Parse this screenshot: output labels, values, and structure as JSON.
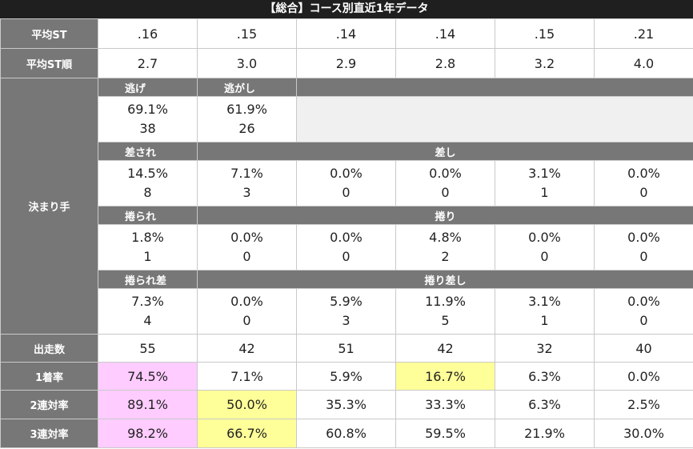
{
  "title": "【総合】コース別直近1年データ",
  "avg_st": {
    "label": "平均ST",
    "values": [
      ".16",
      ".15",
      ".14",
      ".14",
      ".15",
      ".21"
    ]
  },
  "avg_st_rank": {
    "label": "平均ST順",
    "values": [
      "2.7",
      "3.0",
      "2.9",
      "2.8",
      "3.2",
      "4.0"
    ]
  },
  "kimarite": {
    "label": "決まり手",
    "nige": {
      "label": "逃げ",
      "pct": "69.1%",
      "count": "38"
    },
    "nigashi": {
      "label": "逃がし",
      "pct": "61.9%",
      "count": "26"
    },
    "sasare": {
      "label": "差され",
      "pct": "14.5%",
      "count": "8"
    },
    "sashi": {
      "label": "差し",
      "pct": [
        "7.1%",
        "0.0%",
        "0.0%",
        "3.1%",
        "0.0%"
      ],
      "count": [
        "3",
        "0",
        "0",
        "1",
        "0"
      ]
    },
    "makurare": {
      "label": "捲られ",
      "pct": "1.8%",
      "count": "1"
    },
    "makuri": {
      "label": "捲り",
      "pct": [
        "0.0%",
        "0.0%",
        "4.8%",
        "0.0%",
        "0.0%"
      ],
      "count": [
        "0",
        "0",
        "2",
        "0",
        "0"
      ]
    },
    "makurare_sashi": {
      "label": "捲られ差",
      "pct": "7.3%",
      "count": "4"
    },
    "makuri_sashi": {
      "label": "捲り差し",
      "pct": [
        "0.0%",
        "5.9%",
        "11.9%",
        "3.1%",
        "0.0%"
      ],
      "count": [
        "0",
        "3",
        "5",
        "1",
        "0"
      ]
    }
  },
  "starts": {
    "label": "出走数",
    "values": [
      "55",
      "42",
      "51",
      "42",
      "32",
      "40"
    ]
  },
  "win_rate": {
    "label": "1着率",
    "values": [
      "74.5%",
      "7.1%",
      "5.9%",
      "16.7%",
      "6.3%",
      "0.0%"
    ]
  },
  "quinella_rate": {
    "label": "2連対率",
    "values": [
      "89.1%",
      "50.0%",
      "35.3%",
      "33.3%",
      "6.3%",
      "2.5%"
    ]
  },
  "trio_rate": {
    "label": "3連対率",
    "values": [
      "98.2%",
      "66.7%",
      "60.8%",
      "59.5%",
      "21.9%",
      "30.0%"
    ]
  },
  "highlight_colors": {
    "pink": "#ffccff",
    "yellow": "#ffff99",
    "header_gray": "#777777",
    "title_bg": "#1f1f1f"
  }
}
